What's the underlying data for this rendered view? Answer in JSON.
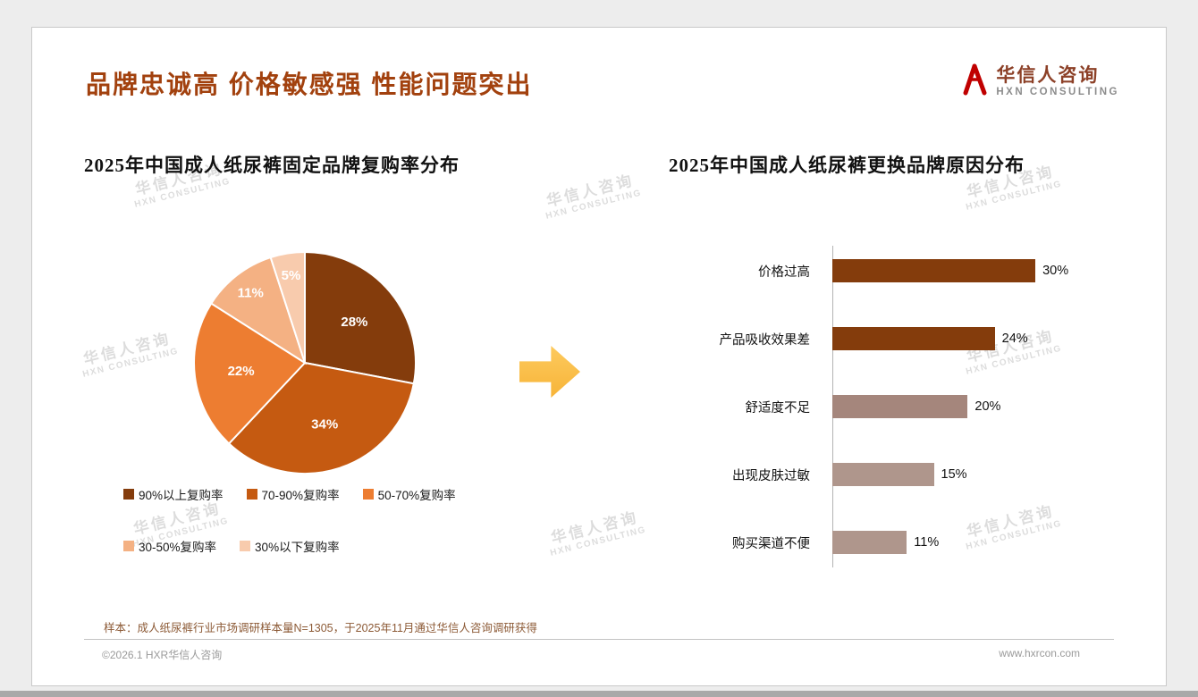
{
  "slide": {
    "title": "品牌忠诚高 价格敏感强 性能问题突出",
    "logo": {
      "name": "华信人咨询",
      "subtitle": "HXN CONSULTING"
    },
    "watermark": {
      "line1": "华信人咨询",
      "line2": "HXN CONSULTING"
    },
    "footnote": "样本：成人纸尿裤行业市场调研样本量N=1305，于2025年11月通过华信人咨询调研获得",
    "footer_left": "©2026.1 HXR华信人咨询",
    "footer_right": "www.hxrcon.com",
    "accent_color": "#A2410E",
    "arrow_color": "#F9BC45"
  },
  "chart_data": [
    {
      "type": "pie",
      "title": "2025年中国成人纸尿裤固定品牌复购率分布",
      "labels": [
        "90%以上复购率",
        "70-90%复购率",
        "50-70%复购率",
        "30-50%复购率",
        "30%以下复购率"
      ],
      "values": [
        28,
        34,
        22,
        11,
        5
      ],
      "colors": [
        "#843C0C",
        "#C55A11",
        "#ED7D31",
        "#F4B183",
        "#F8CBAD"
      ],
      "value_suffix": "%",
      "start_angle": "top",
      "direction": "clockwise",
      "legend_position": "bottom"
    },
    {
      "type": "bar",
      "orientation": "horizontal",
      "title": "2025年中国成人纸尿裤更换品牌原因分布",
      "categories": [
        "价格过高",
        "产品吸收效果差",
        "舒适度不足",
        "出现皮肤过敏",
        "购买渠道不便"
      ],
      "values": [
        30,
        24,
        20,
        15,
        11
      ],
      "colors": [
        "#843C0C",
        "#843C0C",
        "#A5867C",
        "#AF968C",
        "#AF968C"
      ],
      "value_suffix": "%",
      "xlim": [
        0,
        32
      ],
      "grid": false,
      "value_labels": "end-of-bar"
    }
  ]
}
